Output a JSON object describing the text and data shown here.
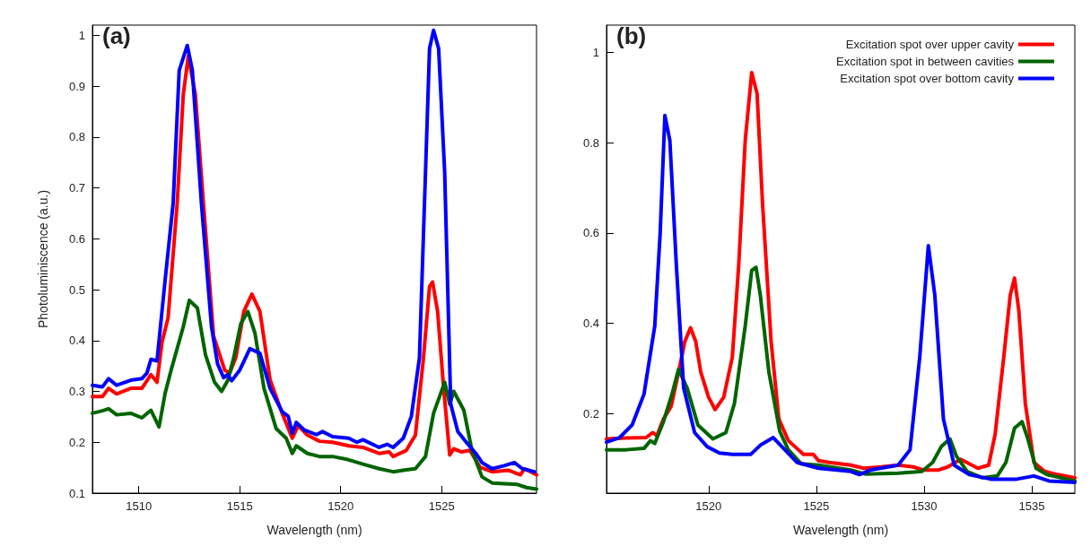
{
  "chart_data": [
    {
      "type": "line",
      "title": "(a)",
      "xlabel": "Wavelength (nm)",
      "ylabel": "Photoluminiscence (a.u.)",
      "xlim": [
        1507.7,
        1529.7
      ],
      "xticks": [
        1510,
        1515,
        1520,
        1525
      ],
      "ylim": [
        0.1,
        1.02
      ],
      "yticks": [
        0.1,
        0.2,
        0.3,
        0.4,
        0.5,
        0.6,
        0.7,
        0.8,
        0.9,
        1
      ],
      "grid": false,
      "legend": false,
      "marker": "none",
      "line_style": "solid",
      "series": [
        {
          "color": "#ff0000",
          "x": [
            1507.7,
            1508.2,
            1508.5,
            1508.9,
            1509.6,
            1510.15,
            1510.6,
            1510.9,
            1511.15,
            1511.45,
            1511.9,
            1512.2,
            1512.45,
            1512.8,
            1513.2,
            1513.7,
            1514.25,
            1514.5,
            1514.8,
            1515.2,
            1515.6,
            1516.0,
            1516.5,
            1517.1,
            1517.6,
            1517.9,
            1518.35,
            1518.95,
            1519.6,
            1520.4,
            1521.1,
            1521.9,
            1522.4,
            1522.6,
            1523.25,
            1523.7,
            1524.1,
            1524.4,
            1524.55,
            1524.8,
            1525.1,
            1525.4,
            1525.6,
            1526.0,
            1526.4,
            1526.9,
            1527.5,
            1528.3,
            1528.9,
            1529.1,
            1529.7
          ],
          "values": [
            0.29,
            0.29,
            0.306,
            0.295,
            0.306,
            0.306,
            0.333,
            0.318,
            0.397,
            0.445,
            0.67,
            0.883,
            0.959,
            0.883,
            0.67,
            0.409,
            0.342,
            0.336,
            0.366,
            0.457,
            0.491,
            0.457,
            0.323,
            0.257,
            0.208,
            0.233,
            0.214,
            0.202,
            0.2,
            0.193,
            0.19,
            0.178,
            0.181,
            0.172,
            0.184,
            0.214,
            0.366,
            0.506,
            0.515,
            0.457,
            0.306,
            0.175,
            0.187,
            0.181,
            0.184,
            0.151,
            0.142,
            0.145,
            0.136,
            0.148,
            0.136
          ]
        },
        {
          "color": "#006400",
          "x": [
            1507.7,
            1508.2,
            1508.5,
            1508.9,
            1509.6,
            1510.15,
            1510.6,
            1511.0,
            1511.3,
            1511.6,
            1512.2,
            1512.5,
            1512.9,
            1513.3,
            1513.75,
            1514.1,
            1514.4,
            1514.7,
            1515.05,
            1515.4,
            1515.75,
            1516.2,
            1516.8,
            1517.3,
            1517.6,
            1517.8,
            1518.35,
            1518.95,
            1519.6,
            1520.35,
            1521.1,
            1521.9,
            1522.6,
            1523.25,
            1523.7,
            1524.2,
            1524.6,
            1525.15,
            1525.4,
            1525.6,
            1526.1,
            1526.5,
            1527.0,
            1527.5,
            1528.75,
            1529.2,
            1529.7
          ],
          "values": [
            0.257,
            0.262,
            0.266,
            0.254,
            0.257,
            0.248,
            0.263,
            0.23,
            0.296,
            0.342,
            0.427,
            0.479,
            0.464,
            0.372,
            0.318,
            0.3,
            0.321,
            0.366,
            0.433,
            0.457,
            0.415,
            0.306,
            0.227,
            0.208,
            0.178,
            0.193,
            0.178,
            0.172,
            0.172,
            0.166,
            0.157,
            0.148,
            0.142,
            0.146,
            0.148,
            0.172,
            0.257,
            0.318,
            0.275,
            0.3,
            0.263,
            0.184,
            0.132,
            0.12,
            0.117,
            0.111,
            0.108
          ]
        },
        {
          "color": "#0000ff",
          "x": [
            1507.7,
            1508.2,
            1508.5,
            1508.9,
            1509.6,
            1510.15,
            1510.4,
            1510.6,
            1510.9,
            1511.3,
            1511.7,
            1512.0,
            1512.4,
            1512.65,
            1513.1,
            1513.6,
            1513.9,
            1514.2,
            1514.4,
            1514.6,
            1515.0,
            1515.5,
            1516.0,
            1516.5,
            1517.1,
            1517.4,
            1517.6,
            1517.8,
            1518.2,
            1518.8,
            1519.1,
            1519.6,
            1520.4,
            1520.8,
            1521.1,
            1521.9,
            1522.3,
            1522.6,
            1523.1,
            1523.5,
            1523.9,
            1524.2,
            1524.4,
            1524.6,
            1524.85,
            1525.15,
            1525.45,
            1525.8,
            1526.3,
            1526.7,
            1527.0,
            1527.5,
            1528.1,
            1528.6,
            1529.0,
            1529.6
          ],
          "values": [
            0.312,
            0.309,
            0.325,
            0.312,
            0.322,
            0.325,
            0.336,
            0.363,
            0.36,
            0.518,
            0.67,
            0.931,
            0.98,
            0.931,
            0.67,
            0.427,
            0.354,
            0.327,
            0.333,
            0.321,
            0.342,
            0.384,
            0.375,
            0.306,
            0.26,
            0.251,
            0.218,
            0.239,
            0.224,
            0.215,
            0.221,
            0.211,
            0.208,
            0.2,
            0.205,
            0.19,
            0.196,
            0.19,
            0.208,
            0.251,
            0.366,
            0.731,
            0.974,
            1.01,
            0.974,
            0.731,
            0.275,
            0.221,
            0.196,
            0.178,
            0.16,
            0.148,
            0.154,
            0.16,
            0.148,
            0.142
          ]
        }
      ]
    },
    {
      "type": "line",
      "title": "(b)",
      "xlabel": "Wavelength (nm)",
      "xlim": [
        1515.26,
        1537.0
      ],
      "xticks": [
        1520,
        1525,
        1530,
        1535
      ],
      "ylim": [
        0.024,
        1.06
      ],
      "yticks": [
        0.2,
        0.4,
        0.6,
        0.8,
        1
      ],
      "grid": false,
      "legend": "top right",
      "marker": "none",
      "line_style": "solid",
      "series": [
        {
          "name": "Excitation spot over upper cavity",
          "color": "#ff0000",
          "x": [
            1515.26,
            1516.16,
            1517.1,
            1517.4,
            1517.6,
            1517.9,
            1518.26,
            1518.6,
            1518.9,
            1519.16,
            1519.4,
            1519.64,
            1520.0,
            1520.3,
            1520.7,
            1521.1,
            1521.4,
            1521.7,
            1522.0,
            1522.25,
            1522.5,
            1522.9,
            1523.26,
            1523.7,
            1524.1,
            1524.4,
            1524.86,
            1525.1,
            1525.6,
            1526.6,
            1527.2,
            1528.0,
            1528.8,
            1529.5,
            1530.0,
            1530.65,
            1531.1,
            1531.7,
            1532.1,
            1532.5,
            1533.0,
            1533.3,
            1533.7,
            1534.0,
            1534.2,
            1534.4,
            1534.7,
            1535.1,
            1535.6,
            1536.2,
            1537.0
          ],
          "values": [
            0.144,
            0.146,
            0.147,
            0.158,
            0.151,
            0.188,
            0.216,
            0.291,
            0.36,
            0.39,
            0.36,
            0.291,
            0.236,
            0.209,
            0.236,
            0.325,
            0.531,
            0.805,
            0.955,
            0.908,
            0.668,
            0.36,
            0.188,
            0.14,
            0.123,
            0.11,
            0.11,
            0.096,
            0.092,
            0.086,
            0.079,
            0.082,
            0.086,
            0.082,
            0.075,
            0.075,
            0.082,
            0.099,
            0.089,
            0.079,
            0.086,
            0.154,
            0.325,
            0.462,
            0.5,
            0.428,
            0.223,
            0.092,
            0.072,
            0.065,
            0.058
          ]
        },
        {
          "name": "Excitation spot in between cavities",
          "color": "#006400",
          "x": [
            1515.26,
            1516.16,
            1517.0,
            1517.3,
            1517.5,
            1517.9,
            1518.3,
            1518.6,
            1519.0,
            1519.5,
            1520.2,
            1520.8,
            1521.2,
            1521.7,
            1522.0,
            1522.2,
            1522.4,
            1522.8,
            1523.3,
            1523.7,
            1524.3,
            1525.1,
            1526.6,
            1527.3,
            1528.8,
            1529.9,
            1530.4,
            1530.8,
            1531.2,
            1531.5,
            1532.0,
            1532.7,
            1533.4,
            1533.8,
            1534.2,
            1534.55,
            1534.8,
            1535.2,
            1535.7,
            1537.0
          ],
          "values": [
            0.12,
            0.12,
            0.123,
            0.14,
            0.134,
            0.182,
            0.243,
            0.298,
            0.257,
            0.175,
            0.144,
            0.158,
            0.223,
            0.394,
            0.517,
            0.524,
            0.462,
            0.291,
            0.161,
            0.12,
            0.089,
            0.086,
            0.075,
            0.066,
            0.068,
            0.072,
            0.092,
            0.127,
            0.144,
            0.106,
            0.072,
            0.058,
            0.062,
            0.092,
            0.168,
            0.182,
            0.147,
            0.079,
            0.065,
            0.051
          ]
        },
        {
          "name": "Excitation spot over bottom cavity",
          "color": "#0000ff",
          "x": [
            1515.26,
            1515.87,
            1516.45,
            1517.0,
            1517.5,
            1517.75,
            1517.97,
            1518.2,
            1518.5,
            1518.84,
            1519.35,
            1519.93,
            1520.5,
            1521.1,
            1521.96,
            1522.4,
            1523.0,
            1523.4,
            1524.1,
            1525.1,
            1526.6,
            1527.0,
            1527.5,
            1528.8,
            1529.35,
            1529.8,
            1530.2,
            1530.5,
            1530.9,
            1531.4,
            1532.1,
            1533.1,
            1534.3,
            1535.1,
            1535.8,
            1537.0
          ],
          "values": [
            0.137,
            0.147,
            0.175,
            0.243,
            0.394,
            0.599,
            0.86,
            0.805,
            0.531,
            0.257,
            0.158,
            0.127,
            0.113,
            0.11,
            0.11,
            0.13,
            0.147,
            0.127,
            0.092,
            0.079,
            0.072,
            0.065,
            0.075,
            0.086,
            0.12,
            0.325,
            0.572,
            0.462,
            0.188,
            0.086,
            0.065,
            0.055,
            0.055,
            0.062,
            0.051,
            0.048
          ]
        }
      ]
    }
  ]
}
